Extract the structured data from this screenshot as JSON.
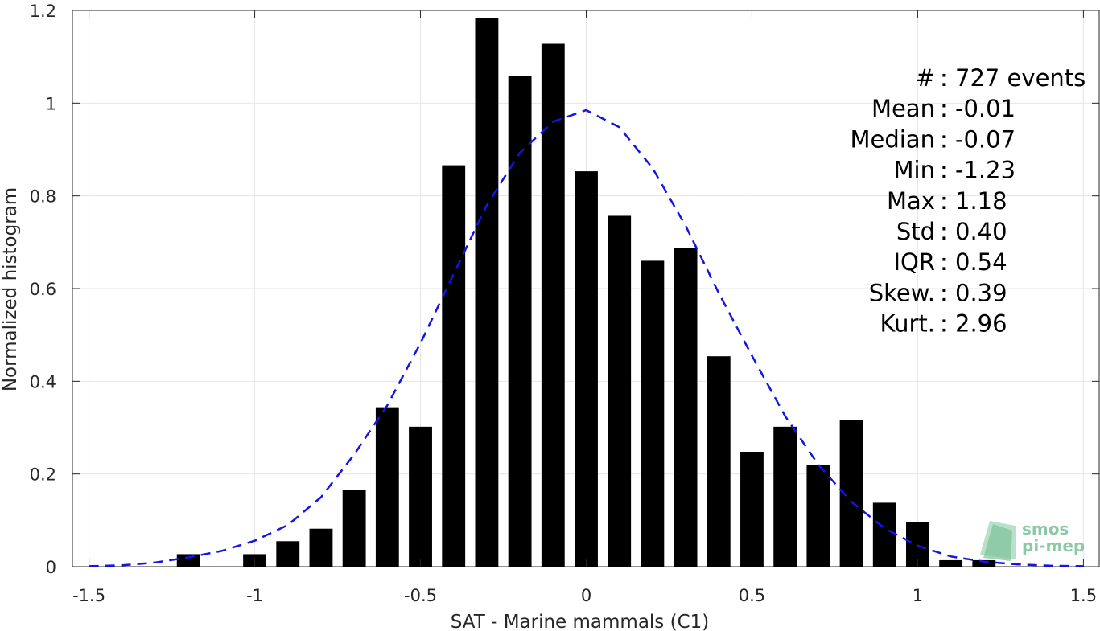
{
  "chart_data": {
    "type": "bar",
    "xlabel": "SAT - Marine mammals (C1)",
    "ylabel": "Normalized histogram",
    "xlim": [
      -1.55,
      1.55
    ],
    "ylim": [
      0,
      1.2
    ],
    "xticks": [
      -1.5,
      -1,
      -0.5,
      0,
      0.5,
      1,
      1.5
    ],
    "xtick_labels": [
      "-1.5",
      "-1",
      "-0.5",
      "0",
      "0.5",
      "1",
      "1.5"
    ],
    "yticks": [
      0,
      0.2,
      0.4,
      0.6,
      0.8,
      1,
      1.2
    ],
    "ytick_labels": [
      "0",
      "0.2",
      "0.4",
      "0.6",
      "0.8",
      "1",
      "1.2"
    ],
    "grid": true,
    "bar_width": 0.07,
    "bar_color": "#000000",
    "bins": [
      {
        "x": -1.2,
        "y": 0.027
      },
      {
        "x": -1.0,
        "y": 0.027
      },
      {
        "x": -0.9,
        "y": 0.055
      },
      {
        "x": -0.8,
        "y": 0.082
      },
      {
        "x": -0.7,
        "y": 0.165
      },
      {
        "x": -0.6,
        "y": 0.344
      },
      {
        "x": -0.5,
        "y": 0.302
      },
      {
        "x": -0.4,
        "y": 0.866
      },
      {
        "x": -0.3,
        "y": 1.183
      },
      {
        "x": -0.2,
        "y": 1.059
      },
      {
        "x": -0.1,
        "y": 1.128
      },
      {
        "x": 0.0,
        "y": 0.853
      },
      {
        "x": 0.1,
        "y": 0.757
      },
      {
        "x": 0.2,
        "y": 0.66
      },
      {
        "x": 0.3,
        "y": 0.688
      },
      {
        "x": 0.4,
        "y": 0.454
      },
      {
        "x": 0.5,
        "y": 0.248
      },
      {
        "x": 0.6,
        "y": 0.302
      },
      {
        "x": 0.7,
        "y": 0.22
      },
      {
        "x": 0.8,
        "y": 0.316
      },
      {
        "x": 0.9,
        "y": 0.138
      },
      {
        "x": 1.0,
        "y": 0.096
      },
      {
        "x": 1.1,
        "y": 0.014
      },
      {
        "x": 1.2,
        "y": 0.014
      }
    ],
    "fit_curve": {
      "style": "dashed",
      "color": "#1414e6",
      "x": [
        -1.5,
        -1.4,
        -1.3,
        -1.2,
        -1.1,
        -1.0,
        -0.9,
        -0.8,
        -0.7,
        -0.6,
        -0.5,
        -0.4,
        -0.3,
        -0.2,
        -0.1,
        0.0,
        0.1,
        0.2,
        0.3,
        0.4,
        0.5,
        0.6,
        0.7,
        0.8,
        0.9,
        1.0,
        1.1,
        1.2,
        1.3,
        1.4,
        1.5
      ],
      "y": [
        0.001,
        0.003,
        0.009,
        0.02,
        0.034,
        0.056,
        0.09,
        0.15,
        0.242,
        0.348,
        0.482,
        0.631,
        0.78,
        0.893,
        0.96,
        0.985,
        0.948,
        0.86,
        0.735,
        0.59,
        0.455,
        0.325,
        0.22,
        0.14,
        0.083,
        0.045,
        0.022,
        0.011,
        0.005,
        0.002,
        0.001
      ]
    },
    "stats": [
      {
        "label": "#  ",
        "value": "727 events"
      },
      {
        "label": "Mean",
        "value": "-0.01"
      },
      {
        "label": "Median",
        "value": "-0.07"
      },
      {
        "label": "Min",
        "value": "-1.23"
      },
      {
        "label": "Max",
        "value": "1.18"
      },
      {
        "label": "Std",
        "value": "0.40"
      },
      {
        "label": "IQR",
        "value": "0.54"
      },
      {
        "label": "Skew.",
        "value": "0.39"
      },
      {
        "label": "Kurt.",
        "value": "2.96"
      }
    ]
  },
  "logo": {
    "line1": "smos",
    "line2": "pi-mep",
    "color": "#8cc9a6"
  }
}
